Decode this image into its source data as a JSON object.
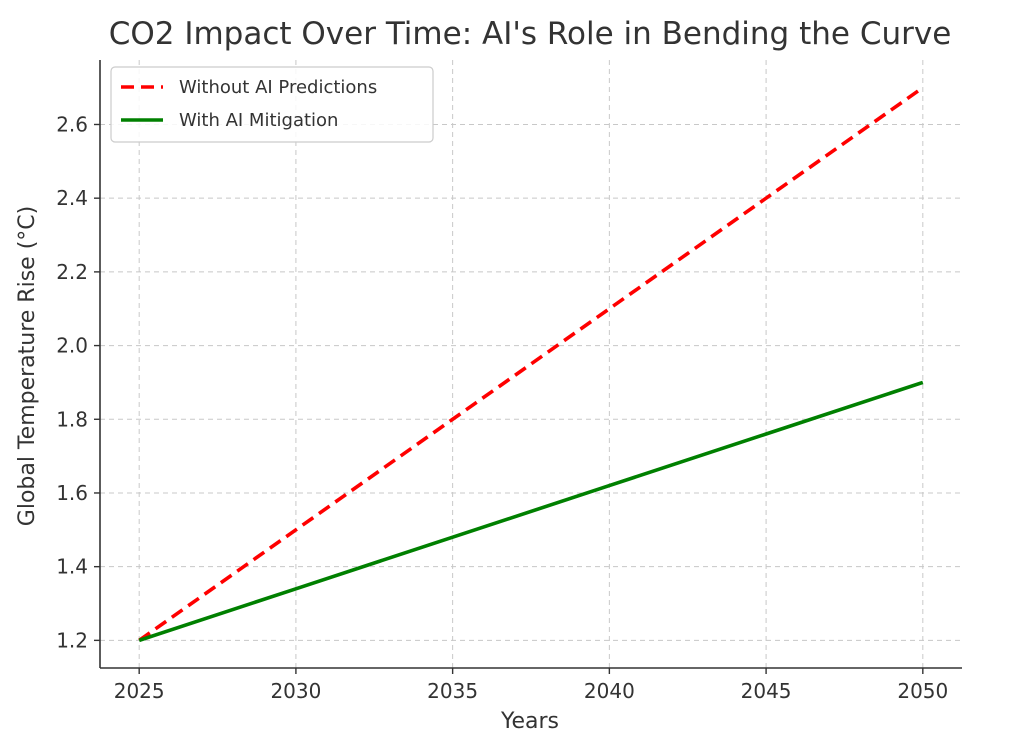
{
  "chart_data": {
    "type": "line",
    "title": "CO2 Impact Over Time: AI's Role in Bending the Curve",
    "xlabel": "Years",
    "ylabel": "Global Temperature Rise (°C)",
    "xlim": [
      2023.75,
      2051.25
    ],
    "ylim": [
      1.125,
      2.775
    ],
    "xticks": [
      2025,
      2030,
      2035,
      2040,
      2045,
      2050
    ],
    "yticks": [
      1.2,
      1.4,
      1.6,
      1.8,
      2.0,
      2.2,
      2.4,
      2.6
    ],
    "xtick_labels": [
      "2025",
      "2030",
      "2035",
      "2040",
      "2045",
      "2050"
    ],
    "ytick_labels": [
      "1.2",
      "1.4",
      "1.6",
      "1.8",
      "2.0",
      "2.2",
      "2.4",
      "2.6"
    ],
    "grid": true,
    "legend_position": "upper-left",
    "series": [
      {
        "name": "Without AI Predictions",
        "color": "#ff0000",
        "style": "dashed",
        "x": [
          2025,
          2030,
          2035,
          2040,
          2045,
          2050
        ],
        "y": [
          1.2,
          1.5,
          1.8,
          2.1,
          2.4,
          2.7
        ]
      },
      {
        "name": "With AI Mitigation",
        "color": "#008000",
        "style": "solid",
        "x": [
          2025,
          2030,
          2035,
          2040,
          2045,
          2050
        ],
        "y": [
          1.2,
          1.34,
          1.48,
          1.62,
          1.76,
          1.9
        ]
      }
    ]
  }
}
